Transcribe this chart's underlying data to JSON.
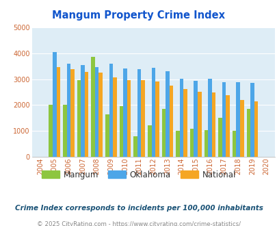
{
  "title": "Mangum Property Crime Index",
  "years": [
    "2004",
    "2005",
    "2006",
    "2007",
    "2008",
    "2009",
    "2010",
    "2011",
    "2012",
    "2013",
    "2014",
    "2015",
    "2016",
    "2017",
    "2018",
    "2019",
    "2020"
  ],
  "mangum": [
    0,
    2000,
    2000,
    2950,
    3850,
    1650,
    1950,
    800,
    1220,
    1850,
    1000,
    1080,
    1050,
    1500,
    1020,
    1850,
    0
  ],
  "oklahoma": [
    0,
    4050,
    3600,
    3550,
    3450,
    3580,
    3420,
    3380,
    3430,
    3300,
    3020,
    2930,
    3020,
    2880,
    2880,
    2850,
    0
  ],
  "national": [
    0,
    3450,
    3370,
    3280,
    3240,
    3060,
    2970,
    2960,
    2900,
    2760,
    2620,
    2510,
    2480,
    2380,
    2200,
    2140,
    0
  ],
  "mangum_color": "#8dc63f",
  "oklahoma_color": "#4da6e8",
  "national_color": "#f5a623",
  "plot_bg": "#deedf6",
  "title_color": "#1155cc",
  "tick_color": "#cc6633",
  "ylim": [
    0,
    5000
  ],
  "yticks": [
    0,
    1000,
    2000,
    3000,
    4000,
    5000
  ],
  "footer_text": "Crime Index corresponds to incidents per 100,000 inhabitants",
  "copyright_text": "© 2025 CityRating.com - https://www.cityrating.com/crime-statistics/",
  "legend_labels": [
    "Mangum",
    "Oklahoma",
    "National"
  ]
}
